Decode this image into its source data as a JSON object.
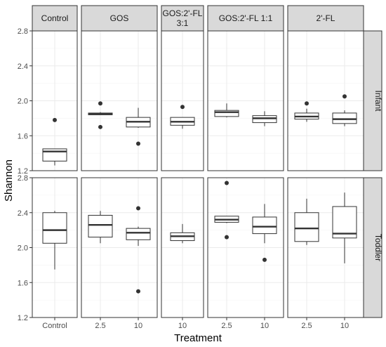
{
  "chart_data": {
    "type": "boxplot",
    "xlabel": "Treatment",
    "ylabel": "Shannon",
    "ylim": [
      1.2,
      2.8
    ],
    "yticks": [
      1.2,
      1.6,
      2.0,
      2.4,
      2.8
    ],
    "grid": true,
    "facet_columns": [
      {
        "label": "Control",
        "categories": [
          "Control"
        ]
      },
      {
        "label": "GOS",
        "categories": [
          "2.5",
          "10"
        ]
      },
      {
        "label": "GOS:2'-FL\n3:1",
        "categories": [
          "10"
        ]
      },
      {
        "label": "GOS:2'-FL 1:1",
        "categories": [
          "2.5",
          "10"
        ]
      },
      {
        "label": "2'-FL",
        "categories": [
          "2.5",
          "10"
        ]
      }
    ],
    "facet_rows": [
      "Infant",
      "Toddler"
    ],
    "boxes": {
      "Infant": [
        [
          {
            "min": 1.26,
            "q1": 1.31,
            "median": 1.42,
            "q3": 1.45,
            "max": 1.45,
            "outliers": [
              1.78
            ]
          }
        ],
        [
          {
            "min": 1.84,
            "q1": 1.84,
            "median": 1.85,
            "q3": 1.86,
            "max": 1.87,
            "outliers": [
              1.97,
              1.7
            ]
          },
          {
            "min": 1.69,
            "q1": 1.7,
            "median": 1.76,
            "q3": 1.81,
            "max": 1.92,
            "outliers": [
              1.51
            ]
          }
        ],
        [
          {
            "min": 1.68,
            "q1": 1.72,
            "median": 1.76,
            "q3": 1.81,
            "max": 1.81,
            "outliers": [
              1.93
            ]
          }
        ],
        [
          {
            "min": 1.81,
            "q1": 1.82,
            "median": 1.87,
            "q3": 1.89,
            "max": 1.97,
            "outliers": []
          },
          {
            "min": 1.71,
            "q1": 1.75,
            "median": 1.8,
            "q3": 1.83,
            "max": 1.88,
            "outliers": []
          }
        ],
        [
          {
            "min": 1.76,
            "q1": 1.79,
            "median": 1.82,
            "q3": 1.86,
            "max": 1.91,
            "outliers": [
              1.97
            ]
          },
          {
            "min": 1.71,
            "q1": 1.74,
            "median": 1.79,
            "q3": 1.86,
            "max": 1.89,
            "outliers": [
              2.05
            ]
          }
        ]
      ],
      "Toddler": [
        [
          {
            "min": 1.75,
            "q1": 2.05,
            "median": 2.2,
            "q3": 2.4,
            "max": 2.42,
            "outliers": []
          }
        ],
        [
          {
            "min": 2.05,
            "q1": 2.12,
            "median": 2.26,
            "q3": 2.37,
            "max": 2.42,
            "outliers": []
          },
          {
            "min": 2.02,
            "q1": 2.09,
            "median": 2.17,
            "q3": 2.22,
            "max": 2.24,
            "outliers": [
              2.45,
              1.5
            ]
          }
        ],
        [
          {
            "min": 2.05,
            "q1": 2.08,
            "median": 2.13,
            "q3": 2.17,
            "max": 2.27,
            "outliers": []
          }
        ],
        [
          {
            "min": 2.28,
            "q1": 2.29,
            "median": 2.32,
            "q3": 2.36,
            "max": 2.36,
            "outliers": [
              2.74,
              2.12
            ]
          },
          {
            "min": 2.05,
            "q1": 2.16,
            "median": 2.24,
            "q3": 2.35,
            "max": 2.5,
            "outliers": [
              1.86
            ]
          }
        ],
        [
          {
            "min": 2.03,
            "q1": 2.07,
            "median": 2.22,
            "q3": 2.4,
            "max": 2.56,
            "outliers": []
          },
          {
            "min": 1.82,
            "q1": 2.11,
            "median": 2.16,
            "q3": 2.47,
            "max": 2.63,
            "outliers": []
          }
        ]
      ]
    },
    "colors": {
      "strip_fill": "#d9d9d9",
      "panel_border": "#333333",
      "grid": "#ebebeb",
      "box_stroke": "#333333",
      "text": "#4d4d4d"
    }
  }
}
